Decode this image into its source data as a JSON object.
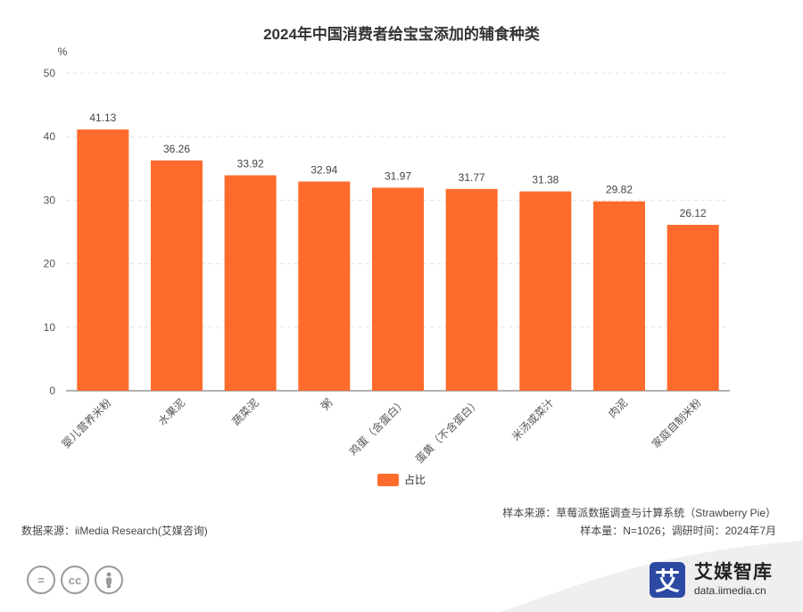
{
  "chart_data": {
    "type": "bar",
    "title": "2024年中国消费者给宝宝添加的辅食种类",
    "ylabel": "%",
    "xlabel": "",
    "ylim": [
      0,
      50
    ],
    "yticks": [
      0,
      10,
      20,
      30,
      40,
      50
    ],
    "categories": [
      "婴儿营养米粉",
      "水果泥",
      "蔬菜泥",
      "粥",
      "鸡蛋（含蛋白）",
      "蛋黄（不含蛋白）",
      "米汤或菜汁",
      "肉泥",
      "家庭自制米粉"
    ],
    "series": [
      {
        "name": "占比",
        "values": [
          41.13,
          36.26,
          33.92,
          32.94,
          31.97,
          31.77,
          31.38,
          29.82,
          26.12
        ],
        "color": "#FF6B2C"
      }
    ],
    "grid": true,
    "legend": "bottom-center"
  },
  "notes": {
    "sample_source": "样本来源：草莓派数据调查与计算系统（Strawberry Pie）",
    "sample_size": "样本量：N=1026；调研时间：2024年7月",
    "data_source": "数据来源：iiMedia Research(艾媒咨询)"
  },
  "brand": {
    "logo_char": "艾",
    "name": "艾媒智库",
    "url": "data.iimedia.cn"
  },
  "license_icons": [
    "=",
    "cc",
    "person-icon"
  ]
}
